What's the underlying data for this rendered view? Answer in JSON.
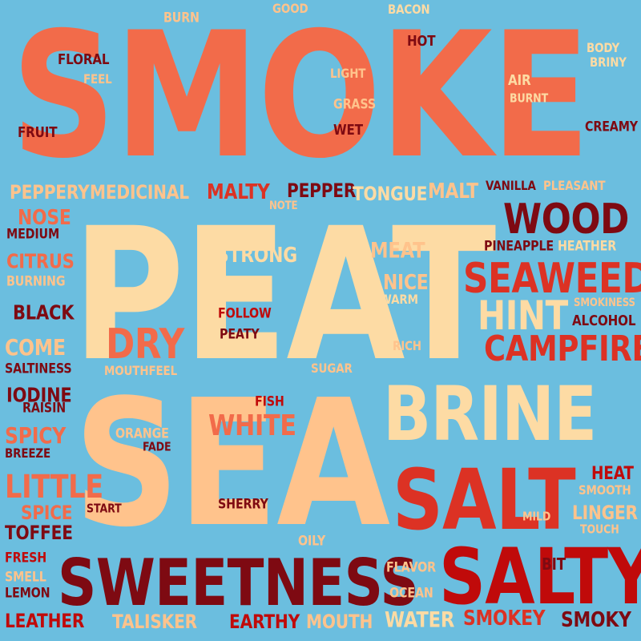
{
  "words": [
    {
      "text": "SMOKE",
      "color": "#f26b4a"
    },
    {
      "text": "PEAT",
      "color": "#fddba4"
    },
    {
      "text": "SEA",
      "color": "#ffc38c"
    },
    {
      "text": "BRINE",
      "color": "#fddba4"
    },
    {
      "text": "SALT",
      "color": "#dc3224"
    },
    {
      "text": "SALTY",
      "color": "#c00a0a"
    },
    {
      "text": "SWEETNESS",
      "color": "#7e0a12"
    },
    {
      "text": "WOOD",
      "color": "#7e0a12"
    },
    {
      "text": "SEAWEED",
      "color": "#dc3224"
    },
    {
      "text": "CAMPFIRE",
      "color": "#dc3224"
    },
    {
      "text": "HINT",
      "color": "#fddba4"
    },
    {
      "text": "DRY",
      "color": "#f26b4a"
    },
    {
      "text": "LITTLE",
      "color": "#f26b4a"
    },
    {
      "text": "WHITE",
      "color": "#f26b4a"
    },
    {
      "text": "STRONG",
      "color": "#fddba4"
    },
    {
      "text": "MEAT",
      "color": "#ffc38c"
    },
    {
      "text": "NICE",
      "color": "#ffc38c"
    },
    {
      "text": "MALTY",
      "color": "#dc3224"
    },
    {
      "text": "PEPPER",
      "color": "#7e0a12"
    },
    {
      "text": "TONGUE",
      "color": "#fddba4"
    },
    {
      "text": "MALT",
      "color": "#ffc38c"
    },
    {
      "text": "MEDICINAL",
      "color": "#ffc38c"
    },
    {
      "text": "PEPPERY",
      "color": "#ffc38c"
    },
    {
      "text": "NOSE",
      "color": "#f26b4a"
    },
    {
      "text": "CITRUS",
      "color": "#f26b4a"
    },
    {
      "text": "BLACK",
      "color": "#7e0a12"
    },
    {
      "text": "COME",
      "color": "#ffc38c"
    },
    {
      "text": "IODINE",
      "color": "#7e0a12"
    },
    {
      "text": "SPICY",
      "color": "#f26b4a"
    },
    {
      "text": "SPICE",
      "color": "#f26b4a"
    },
    {
      "text": "TOFFEE",
      "color": "#7e0a12"
    },
    {
      "text": "LEATHER",
      "color": "#c00a0a"
    },
    {
      "text": "TALISKER",
      "color": "#ffc38c"
    },
    {
      "text": "EARTHY",
      "color": "#c00a0a"
    },
    {
      "text": "MOUTH",
      "color": "#ffc38c"
    },
    {
      "text": "WATER",
      "color": "#fddba4"
    },
    {
      "text": "SMOKEY",
      "color": "#dc3224"
    },
    {
      "text": "SMOKY",
      "color": "#7e0a12"
    },
    {
      "text": "HEAT",
      "color": "#c00a0a"
    },
    {
      "text": "LINGER",
      "color": "#ffc38c"
    },
    {
      "text": "SMOOTH",
      "color": "#ffc38c"
    },
    {
      "text": "TOUCH",
      "color": "#ffc38c"
    },
    {
      "text": "MILD",
      "color": "#ffc38c"
    },
    {
      "text": "BIT",
      "color": "#7e0a12"
    },
    {
      "text": "FLAVOR",
      "color": "#ffc38c"
    },
    {
      "text": "OCEAN",
      "color": "#ffc38c"
    },
    {
      "text": "OILY",
      "color": "#ffc38c"
    },
    {
      "text": "SHERRY",
      "color": "#7e0a12"
    },
    {
      "text": "START",
      "color": "#7e0a12"
    },
    {
      "text": "FADE",
      "color": "#7e0a12"
    },
    {
      "text": "ORANGE",
      "color": "#ffc38c"
    },
    {
      "text": "FISH",
      "color": "#c00a0a"
    },
    {
      "text": "SUGAR",
      "color": "#ffc38c"
    },
    {
      "text": "RICH",
      "color": "#ffc38c"
    },
    {
      "text": "WARM",
      "color": "#fddba4"
    },
    {
      "text": "FOLLOW",
      "color": "#c00a0a"
    },
    {
      "text": "PEATY",
      "color": "#7e0a12"
    },
    {
      "text": "MOUTHFEEL",
      "color": "#ffc38c"
    },
    {
      "text": "SALTINESS",
      "color": "#7e0a12"
    },
    {
      "text": "RAISIN",
      "color": "#7e0a12"
    },
    {
      "text": "BREEZE",
      "color": "#7e0a12"
    },
    {
      "text": "FRESH",
      "color": "#c00a0a"
    },
    {
      "text": "SMELL",
      "color": "#ffc38c"
    },
    {
      "text": "LEMON",
      "color": "#7e0a12"
    },
    {
      "text": "BURNING",
      "color": "#ffc38c"
    },
    {
      "text": "MEDIUM",
      "color": "#7e0a12"
    },
    {
      "text": "NOTE",
      "color": "#ffc38c"
    },
    {
      "text": "VANILLA",
      "color": "#7e0a12"
    },
    {
      "text": "PLEASANT",
      "color": "#ffc38c"
    },
    {
      "text": "PINEAPPLE",
      "color": "#7e0a12"
    },
    {
      "text": "HEATHER",
      "color": "#fddba4"
    },
    {
      "text": "SMOKINESS",
      "color": "#ffc38c"
    },
    {
      "text": "ALCOHOL",
      "color": "#7e0a12"
    },
    {
      "text": "CREAMY",
      "color": "#7e0a12"
    },
    {
      "text": "BURNT",
      "color": "#fddba4"
    },
    {
      "text": "AIR",
      "color": "#fddba4"
    },
    {
      "text": "BODY",
      "color": "#fddba4"
    },
    {
      "text": "BRINY",
      "color": "#fddba4"
    },
    {
      "text": "HOT",
      "color": "#7e0a12"
    },
    {
      "text": "BACON",
      "color": "#fddba4"
    },
    {
      "text": "GOOD",
      "color": "#ffc38c"
    },
    {
      "text": "BURN",
      "color": "#ffc38c"
    },
    {
      "text": "FLORAL",
      "color": "#7e0a12"
    },
    {
      "text": "FEEL",
      "color": "#ffc38c"
    },
    {
      "text": "FRUIT",
      "color": "#7e0a12"
    },
    {
      "text": "LIGHT",
      "color": "#ffc38c"
    },
    {
      "text": "GRASS",
      "color": "#ffc38c"
    },
    {
      "text": "WET",
      "color": "#7e0a12"
    }
  ]
}
